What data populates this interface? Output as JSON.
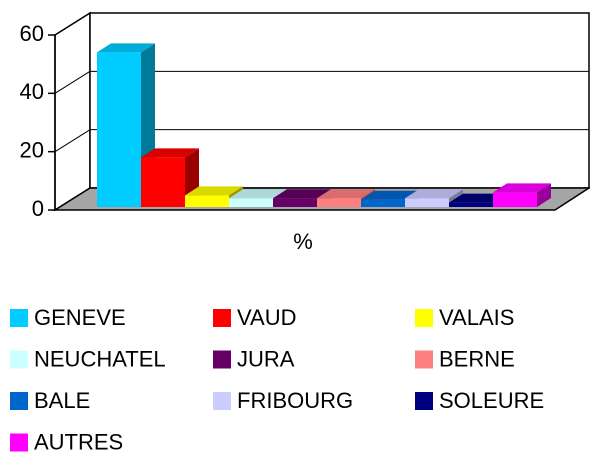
{
  "chart_data": {
    "type": "bar3d",
    "categories": [
      "%"
    ],
    "series": [
      {
        "name": "GENEVE",
        "color": "#00ccff",
        "values": [
          53
        ]
      },
      {
        "name": "VAUD",
        "color": "#ff0000",
        "values": [
          17
        ]
      },
      {
        "name": "VALAIS",
        "color": "#ffff00",
        "values": [
          4
        ]
      },
      {
        "name": "NEUCHATEL",
        "color": "#ccffff",
        "values": [
          3
        ]
      },
      {
        "name": "JURA",
        "color": "#660066",
        "values": [
          3
        ]
      },
      {
        "name": "BERNE",
        "color": "#ff8080",
        "values": [
          3
        ]
      },
      {
        "name": "BALE",
        "color": "#0066cc",
        "values": [
          2.5
        ]
      },
      {
        "name": "FRIBOURG",
        "color": "#ccccff",
        "values": [
          3
        ]
      },
      {
        "name": "SOLEURE",
        "color": "#000080",
        "values": [
          1.5
        ]
      },
      {
        "name": "AUTRES",
        "color": "#ff00ff",
        "values": [
          5
        ]
      }
    ],
    "ylim": [
      0,
      60
    ],
    "yticks": [
      0,
      20,
      40,
      60
    ],
    "grid": true,
    "legend": "bottom"
  }
}
